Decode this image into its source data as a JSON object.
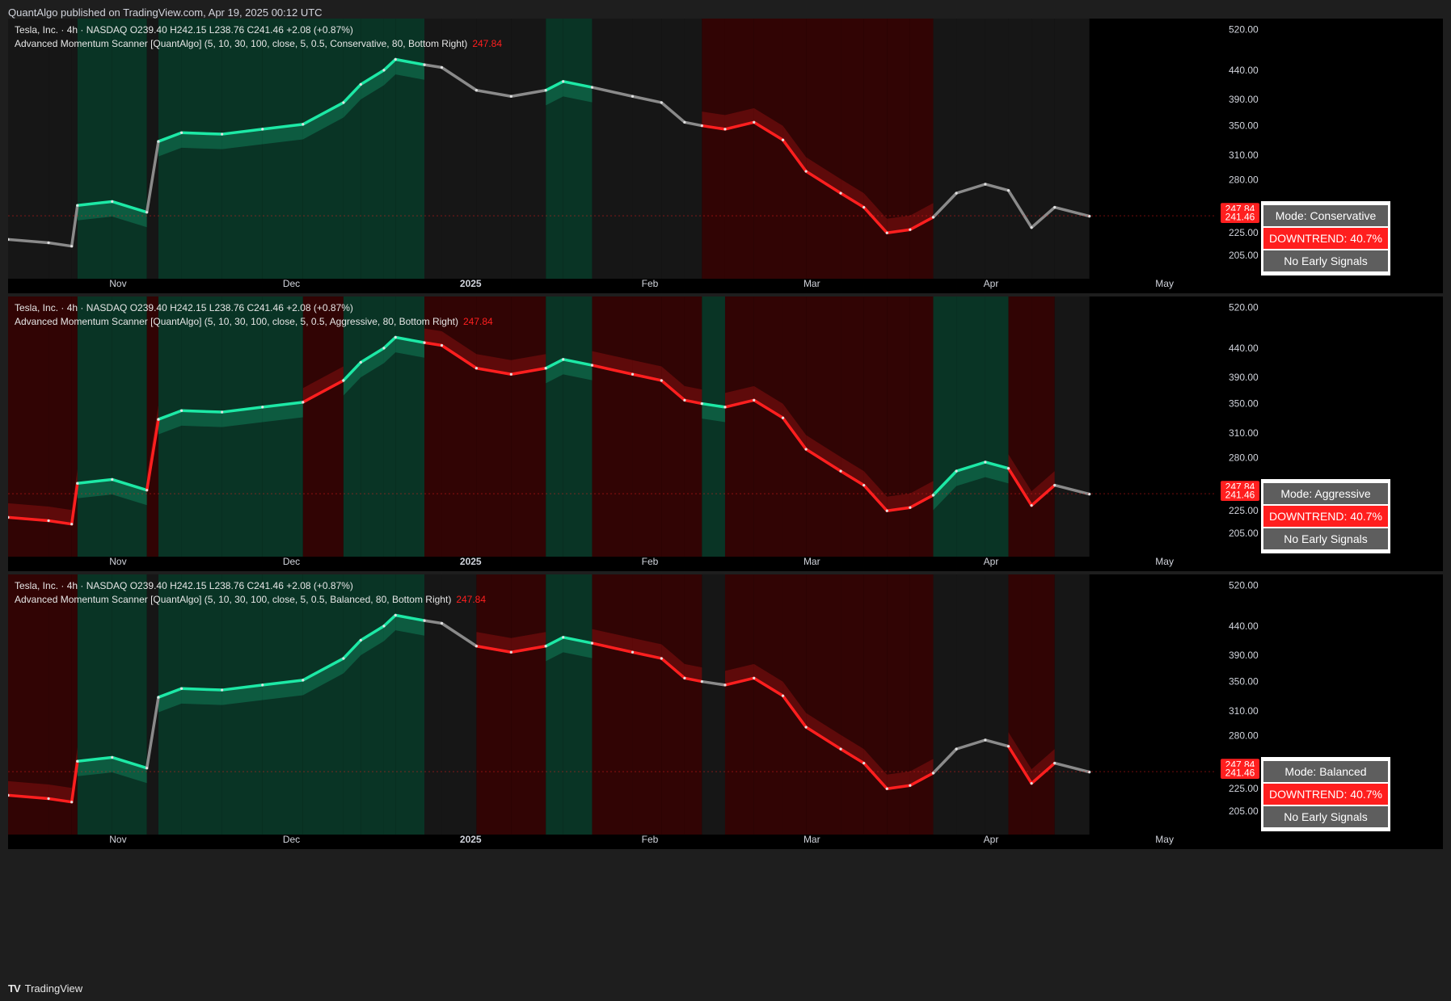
{
  "header": {
    "publisher": "QuantAlgo published on TradingView.com, Apr 19, 2025 00:12 UTC"
  },
  "footer": {
    "brand": "TradingView",
    "logo_icon": "tradingview-logo-icon"
  },
  "colors": {
    "up": "#1de9a6",
    "down": "#ff1f1f",
    "neutral": "#8a8a8a",
    "bg": "#000000"
  },
  "panels": [
    {
      "symbol_line": "Tesla, Inc. · 4h · NASDAQ   O239.40   H242.15   L238.76   C241.46   +2.08 (+0.87%)",
      "indicator_line": "Advanced Momentum Scanner [QuantAlgo] (5, 10, 30, 100, close, 5, 0.5, Conservative, 80, Bottom Right)",
      "indicator_value": "247.84",
      "table": {
        "mode": "Mode: Conservative",
        "trend": "DOWNTREND: 40.7%",
        "signals": "No Early Signals"
      },
      "price_tags": [
        "247.84",
        "241.46"
      ]
    },
    {
      "symbol_line": "Tesla, Inc. · 4h · NASDAQ   O239.40   H242.15   L238.76   C241.46   +2.08 (+0.87%)",
      "indicator_line": "Advanced Momentum Scanner [QuantAlgo] (5, 10, 30, 100, close, 5, 0.5, Aggressive, 80, Bottom Right)",
      "indicator_value": "247.84",
      "table": {
        "mode": "Mode: Aggressive",
        "trend": "DOWNTREND: 40.7%",
        "signals": "No Early Signals"
      },
      "price_tags": [
        "247.84",
        "241.46"
      ]
    },
    {
      "symbol_line": "Tesla, Inc. · 4h · NASDAQ   O239.40   H242.15   L238.76   C241.46   +2.08 (+0.87%)",
      "indicator_line": "Advanced Momentum Scanner [QuantAlgo] (5, 10, 30, 100, close, 5, 0.5, Balanced, 80, Bottom Right)",
      "indicator_value": "247.84",
      "table": {
        "mode": "Mode: Balanced",
        "trend": "DOWNTREND: 40.7%",
        "signals": "No Early Signals"
      },
      "price_tags": [
        "247.84",
        "241.46"
      ]
    }
  ],
  "chart_data": {
    "type": "line",
    "y_ticks": [
      "520.00",
      "440.00",
      "390.00",
      "350.00",
      "310.00",
      "280.00",
      "225.00",
      "205.00"
    ],
    "x_labels": [
      "Nov",
      "Dec",
      "2025",
      "Feb",
      "Mar",
      "Apr",
      "May"
    ],
    "y_scale": "log",
    "ylim": [
      190,
      530
    ],
    "xlim": [
      "2024-10-13",
      "2025-05-10"
    ],
    "last_close": 241.46,
    "x_dates": [
      "2024-10-13",
      "2024-10-20",
      "2024-10-24",
      "2024-10-25",
      "2024-10-31",
      "2024-11-06",
      "2024-11-08",
      "2024-11-12",
      "2024-11-19",
      "2024-11-26",
      "2024-12-03",
      "2024-12-10",
      "2024-12-13",
      "2024-12-17",
      "2024-12-19",
      "2024-12-24",
      "2024-12-27",
      "2025-01-02",
      "2025-01-08",
      "2025-01-14",
      "2025-01-17",
      "2025-01-22",
      "2025-01-29",
      "2025-02-03",
      "2025-02-07",
      "2025-02-10",
      "2025-02-14",
      "2025-02-19",
      "2025-02-24",
      "2025-02-28",
      "2025-03-06",
      "2025-03-10",
      "2025-03-14",
      "2025-03-18",
      "2025-03-22",
      "2025-03-26",
      "2025-03-31",
      "2025-04-04",
      "2025-04-08",
      "2025-04-12",
      "2025-04-18"
    ],
    "series": [
      {
        "name": "TSLA",
        "values": [
          219,
          216,
          213,
          252,
          256,
          245,
          328,
          340,
          338,
          345,
          352,
          385,
          415,
          440,
          460,
          450,
          445,
          405,
          395,
          405,
          420,
          410,
          395,
          385,
          355,
          350,
          345,
          355,
          330,
          290,
          265,
          250,
          225,
          228,
          240,
          265,
          275,
          268,
          230,
          250,
          241
        ]
      }
    ],
    "trend_segments": [
      {
        "name": "Conservative",
        "states": [
          "neutral",
          "neutral",
          "neutral",
          "up",
          "up",
          "neutral",
          "up",
          "up",
          "up",
          "up",
          "up",
          "up",
          "up",
          "up",
          "up",
          "neutral",
          "neutral",
          "neutral",
          "neutral",
          "up",
          "up",
          "neutral",
          "neutral",
          "neutral",
          "neutral",
          "down",
          "down",
          "down",
          "down",
          "down",
          "down",
          "down",
          "down",
          "down",
          "neutral",
          "neutral",
          "neutral",
          "neutral",
          "neutral",
          "neutral",
          "down"
        ]
      },
      {
        "name": "Aggressive",
        "states": [
          "down",
          "down",
          "down",
          "up",
          "up",
          "down",
          "up",
          "up",
          "up",
          "up",
          "down",
          "up",
          "up",
          "up",
          "up",
          "down",
          "down",
          "down",
          "down",
          "up",
          "up",
          "down",
          "down",
          "down",
          "down",
          "up",
          "down",
          "down",
          "down",
          "down",
          "down",
          "down",
          "down",
          "down",
          "up",
          "up",
          "up",
          "down",
          "down",
          "neutral",
          "down"
        ]
      },
      {
        "name": "Balanced",
        "states": [
          "down",
          "down",
          "down",
          "up",
          "up",
          "neutral",
          "up",
          "up",
          "up",
          "up",
          "up",
          "up",
          "up",
          "up",
          "up",
          "neutral",
          "neutral",
          "down",
          "down",
          "up",
          "up",
          "down",
          "down",
          "down",
          "down",
          "neutral",
          "down",
          "down",
          "down",
          "down",
          "down",
          "down",
          "down",
          "down",
          "neutral",
          "neutral",
          "neutral",
          "down",
          "down",
          "neutral",
          "down"
        ]
      }
    ]
  }
}
